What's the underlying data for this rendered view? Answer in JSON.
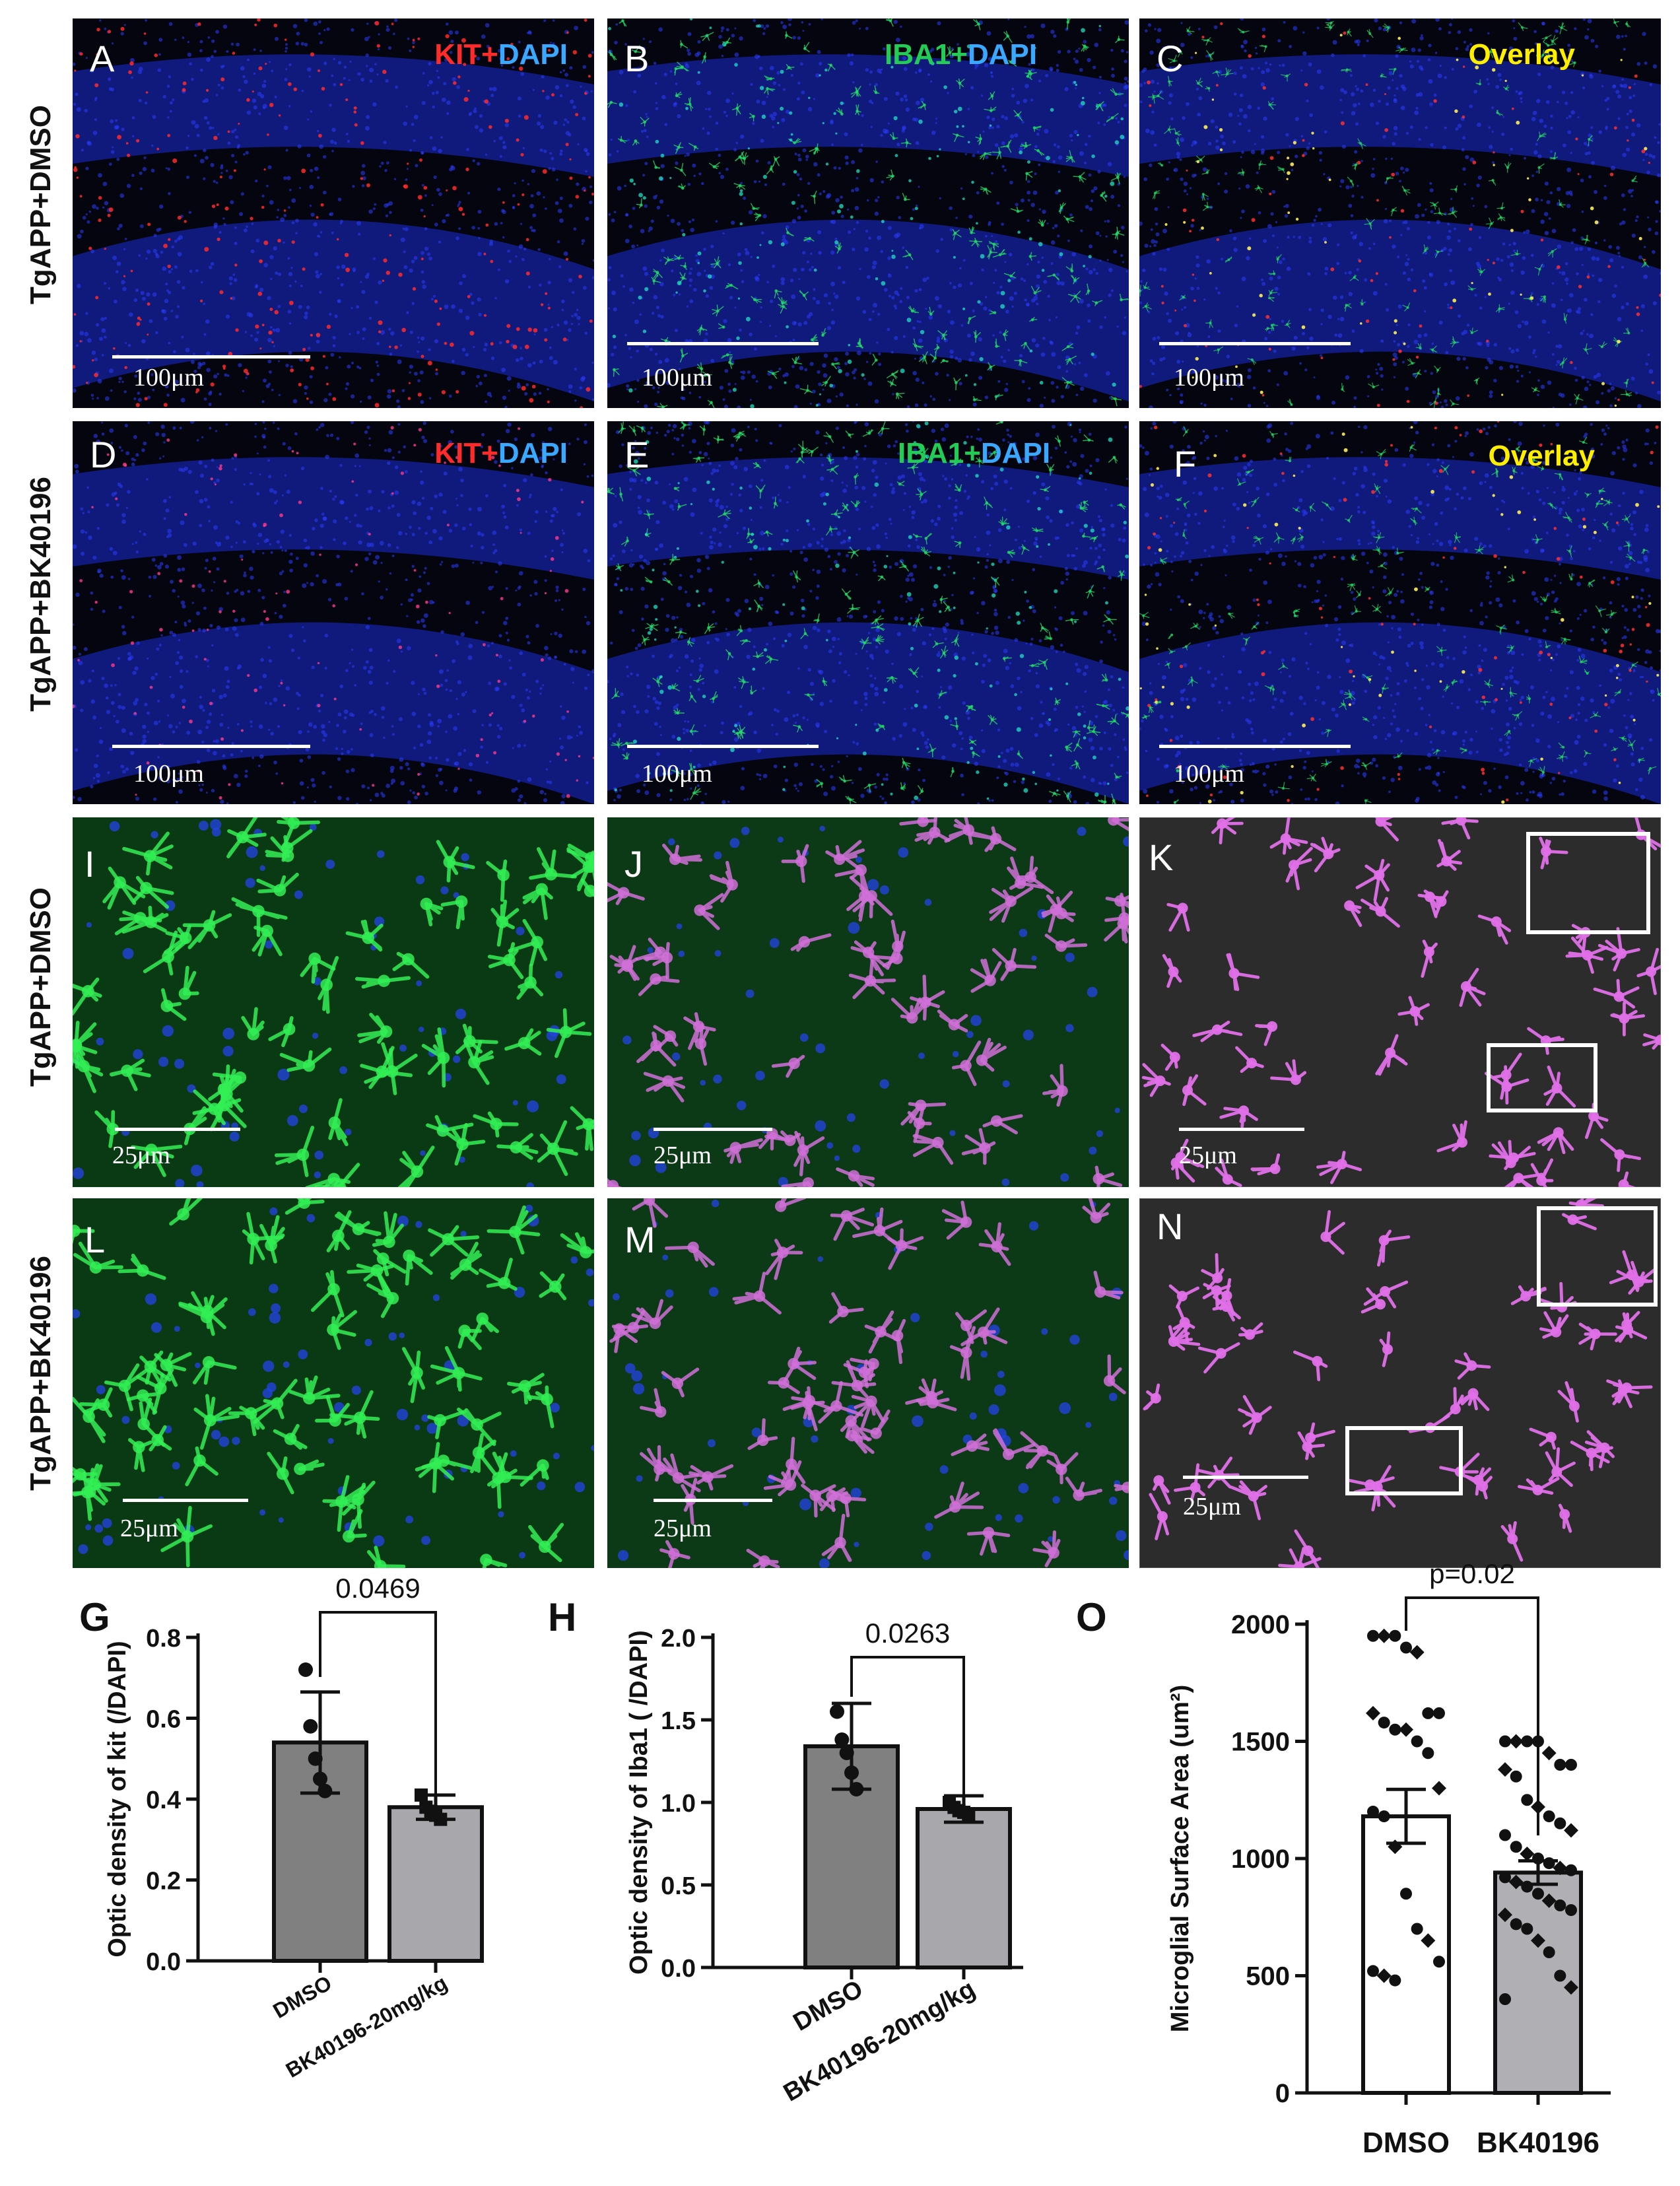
{
  "row_labels": {
    "row1": "TgAPP+DMSO",
    "row2": "TgAPP+BK40196",
    "row3": "TgAPP+DMSO",
    "row4": "TgAPP+BK40196"
  },
  "panels": {
    "A": {
      "letter": "A",
      "channel_kit": "KIT+",
      "channel_dapi": "DAPI",
      "scale": "100μm"
    },
    "B": {
      "letter": "B",
      "channel_iba1": "IBA1+",
      "channel_dapi": "DAPI",
      "scale": "100μm"
    },
    "C": {
      "letter": "C",
      "channel_overlay": "Overlay",
      "scale": "100μm"
    },
    "D": {
      "letter": "D",
      "channel_kit": "KIT+",
      "channel_dapi": "DAPI",
      "scale": "100μm"
    },
    "E": {
      "letter": "E",
      "channel_iba1": "IBA1+",
      "channel_dapi": "DAPI",
      "scale": "100μm"
    },
    "F": {
      "letter": "F",
      "channel_overlay": "Overlay",
      "scale": "100μm"
    },
    "I": {
      "letter": "I",
      "scale": "25μm"
    },
    "J": {
      "letter": "J",
      "scale": "25μm"
    },
    "K": {
      "letter": "K",
      "scale": "25μm"
    },
    "L": {
      "letter": "L",
      "scale": "25μm"
    },
    "M": {
      "letter": "M",
      "scale": "25μm"
    },
    "N": {
      "letter": "N",
      "scale": "25μm"
    }
  },
  "colors": {
    "kit": "#ff2a2a",
    "dapi": "#3aa8ff",
    "iba1": "#22cc55",
    "overlay": "#ffee00",
    "bar_dmso": "#808080",
    "bar_bk": "#a8a8ac",
    "bar_o_bk": "#b0b0b4"
  },
  "chart_data": [
    {
      "panel": "G",
      "type": "bar",
      "categories": [
        "DMSO",
        "BK40196-20mg/kg"
      ],
      "values": [
        0.54,
        0.38
      ],
      "error": [
        0.125,
        0.03
      ],
      "points": [
        [
          0.72,
          0.58,
          0.5,
          0.45,
          0.42
        ],
        [
          0.41,
          0.38,
          0.37,
          0.36,
          0.35
        ]
      ],
      "ylabel": "Optic density of kit (/DAPI)",
      "ylim": [
        0.0,
        0.8
      ],
      "yticks": [
        "0.0",
        "0.2",
        "0.4",
        "0.6",
        "0.8"
      ],
      "annotation": "0.0469"
    },
    {
      "panel": "H",
      "type": "bar",
      "categories": [
        "DMSO",
        "BK40196-20mg/kg"
      ],
      "values": [
        1.34,
        0.96
      ],
      "error": [
        0.26,
        0.08
      ],
      "points": [
        [
          1.55,
          1.38,
          1.3,
          1.18,
          1.08
        ],
        [
          1.0,
          0.97,
          0.95,
          0.94,
          0.93
        ]
      ],
      "ylabel": "Optic density of Iba1 ( /DAPI)",
      "ylim": [
        0.0,
        2.0
      ],
      "yticks": [
        "0.0",
        "0.5",
        "1.0",
        "1.5",
        "2.0"
      ],
      "annotation": "0.0263"
    },
    {
      "panel": "O",
      "type": "bar",
      "categories": [
        "DMSO",
        "BK40196"
      ],
      "values": [
        1180,
        940
      ],
      "error": [
        115,
        50
      ],
      "points": [
        [
          1950,
          1950,
          1950,
          1900,
          1880,
          1620,
          1620,
          1620,
          1580,
          1550,
          1550,
          1500,
          1450,
          1300,
          1200,
          1180,
          1050,
          850,
          700,
          650,
          560,
          520,
          500,
          480
        ],
        [
          1500,
          1500,
          1500,
          1500,
          1450,
          1400,
          1400,
          1380,
          1350,
          1250,
          1220,
          1180,
          1150,
          1120,
          1100,
          1050,
          1020,
          1000,
          980,
          960,
          950,
          920,
          900,
          880,
          850,
          820,
          800,
          780,
          760,
          720,
          700,
          650,
          600,
          500,
          450,
          400
        ]
      ],
      "ylabel": "Microglial Surface Area (um²)",
      "ylim": [
        0,
        2000
      ],
      "yticks": [
        "0",
        "500",
        "1000",
        "1500",
        "2000"
      ],
      "annotation": "p=0.02"
    }
  ]
}
